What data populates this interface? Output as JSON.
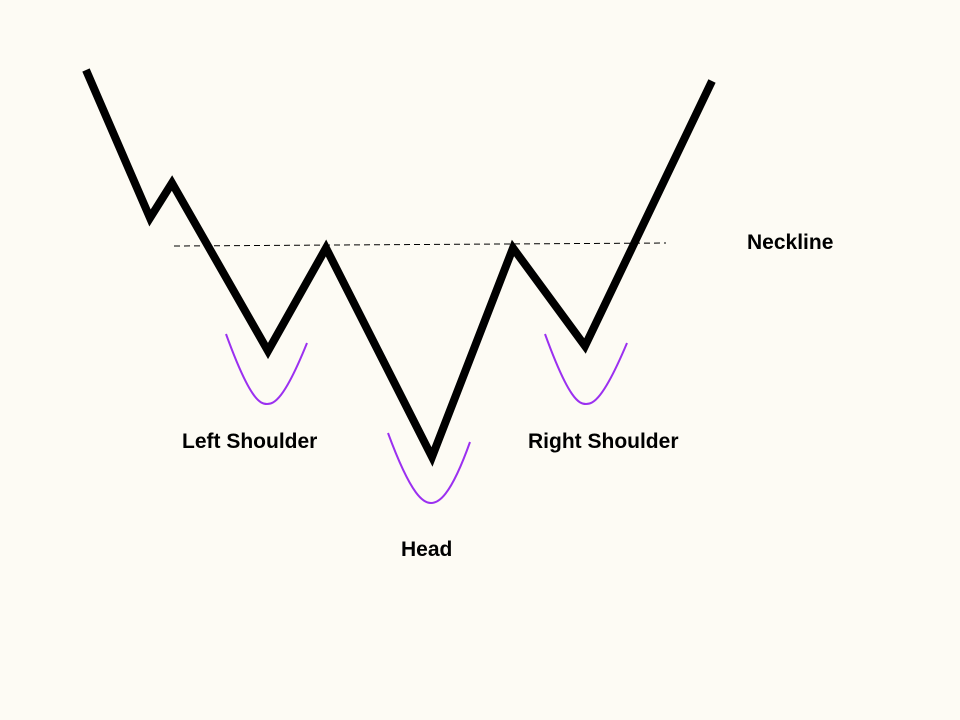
{
  "labels": {
    "neckline": "Neckline",
    "left_shoulder": "Left Shoulder",
    "head": "Head",
    "right_shoulder": "Right Shoulder"
  },
  "colors": {
    "background": "#fdfbf4",
    "price_line": "#000000",
    "highlight_curve": "#9b30f0",
    "neckline": "#000000"
  }
}
